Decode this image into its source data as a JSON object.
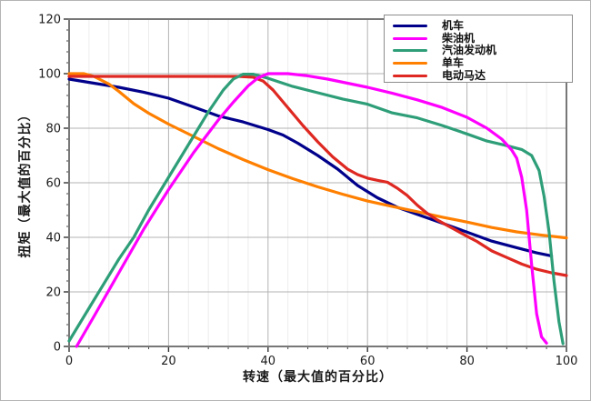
{
  "chart_data": {
    "type": "line",
    "title": "",
    "xlabel": "转速（最大值的百分比）",
    "ylabel": "扭矩（最大值的百分比）",
    "xlim": [
      0,
      100
    ],
    "ylim": [
      0,
      120
    ],
    "x_ticks": [
      0,
      20,
      40,
      60,
      80,
      100
    ],
    "y_ticks": [
      0,
      20,
      40,
      60,
      80,
      100,
      120
    ],
    "minor_step": 4,
    "grid": "major gray + minor light vertical",
    "legend_position": "top-right",
    "colors": {
      "major_grid": "#b3b3b3",
      "minor_grid": "#ececec",
      "plot_border": "#777777",
      "tick_text": "#1a1a1a"
    },
    "series": [
      {
        "name": "机车",
        "color": "#00008B",
        "points": [
          [
            0,
            98
          ],
          [
            5,
            96.5
          ],
          [
            10,
            95
          ],
          [
            15,
            93.2
          ],
          [
            20,
            91
          ],
          [
            25,
            87.8
          ],
          [
            30,
            84.5
          ],
          [
            35,
            82.3
          ],
          [
            40,
            79.5
          ],
          [
            43,
            77.5
          ],
          [
            46,
            74.5
          ],
          [
            50,
            70
          ],
          [
            54,
            65
          ],
          [
            58,
            59
          ],
          [
            62,
            54.5
          ],
          [
            66,
            51
          ],
          [
            70,
            48.4
          ],
          [
            75,
            45.2
          ],
          [
            80,
            41.9
          ],
          [
            85,
            38.6
          ],
          [
            90,
            36.2
          ],
          [
            94,
            34.3
          ],
          [
            97,
            33.2
          ]
        ]
      },
      {
        "name": "柴油机",
        "color": "#FF00FF",
        "points": [
          [
            1.5,
            0
          ],
          [
            5,
            11
          ],
          [
            10,
            27
          ],
          [
            15,
            43
          ],
          [
            20,
            57.5
          ],
          [
            25,
            71
          ],
          [
            30,
            83
          ],
          [
            33,
            89.5
          ],
          [
            36,
            95.5
          ],
          [
            38,
            98.5
          ],
          [
            40,
            100
          ],
          [
            44,
            100
          ],
          [
            48,
            99.2
          ],
          [
            52,
            98
          ],
          [
            56,
            96.5
          ],
          [
            60,
            95
          ],
          [
            65,
            92.8
          ],
          [
            70,
            90.4
          ],
          [
            75,
            87.6
          ],
          [
            80,
            84
          ],
          [
            84,
            80
          ],
          [
            87,
            76
          ],
          [
            89,
            72
          ],
          [
            90,
            69
          ],
          [
            91,
            62
          ],
          [
            92,
            50
          ],
          [
            93,
            30
          ],
          [
            94,
            12
          ],
          [
            95,
            3.5
          ],
          [
            96,
            1.2
          ]
        ]
      },
      {
        "name": "汽油发动机",
        "color": "#2E9E78",
        "points": [
          [
            0,
            2
          ],
          [
            5,
            17
          ],
          [
            10,
            32
          ],
          [
            13,
            40
          ],
          [
            16,
            50
          ],
          [
            20,
            62
          ],
          [
            24,
            74
          ],
          [
            28,
            86
          ],
          [
            31,
            94
          ],
          [
            33,
            98
          ],
          [
            35,
            99.8
          ],
          [
            37,
            99.8
          ],
          [
            40,
            98.3
          ],
          [
            45,
            95.3
          ],
          [
            50,
            93
          ],
          [
            55,
            90.7
          ],
          [
            60,
            88.8
          ],
          [
            65,
            85.6
          ],
          [
            70,
            83.8
          ],
          [
            75,
            81
          ],
          [
            80,
            77.9
          ],
          [
            84,
            75.3
          ],
          [
            88,
            73.6
          ],
          [
            91,
            72.2
          ],
          [
            93,
            70
          ],
          [
            94.5,
            64.5
          ],
          [
            95.5,
            55
          ],
          [
            96.5,
            42
          ],
          [
            97.5,
            24
          ],
          [
            98.5,
            9
          ],
          [
            99.3,
            1
          ]
        ]
      },
      {
        "name": "单车",
        "color": "#FF7F00",
        "points": [
          [
            0,
            100
          ],
          [
            3,
            100
          ],
          [
            5,
            99
          ],
          [
            8,
            96.2
          ],
          [
            10,
            93.5
          ],
          [
            13,
            89
          ],
          [
            16,
            85.5
          ],
          [
            20,
            81.5
          ],
          [
            25,
            77
          ],
          [
            30,
            72.5
          ],
          [
            35,
            68.5
          ],
          [
            40,
            64.8
          ],
          [
            45,
            61.5
          ],
          [
            50,
            58.5
          ],
          [
            55,
            55.8
          ],
          [
            60,
            53.3
          ],
          [
            65,
            51.3
          ],
          [
            70,
            49.4
          ],
          [
            75,
            47.4
          ],
          [
            80,
            45.6
          ],
          [
            85,
            43.6
          ],
          [
            90,
            42
          ],
          [
            95,
            40.8
          ],
          [
            100,
            39.8
          ]
        ]
      },
      {
        "name": "电动马达",
        "color": "#DE2821",
        "points": [
          [
            0,
            99
          ],
          [
            5,
            99
          ],
          [
            10,
            99
          ],
          [
            15,
            99
          ],
          [
            20,
            99
          ],
          [
            25,
            99
          ],
          [
            30,
            99
          ],
          [
            34,
            99
          ],
          [
            37,
            98.7
          ],
          [
            39,
            97.3
          ],
          [
            41,
            94
          ],
          [
            44,
            87.5
          ],
          [
            47,
            81
          ],
          [
            50,
            75
          ],
          [
            53,
            69.5
          ],
          [
            56,
            65
          ],
          [
            58,
            63
          ],
          [
            60,
            61.7
          ],
          [
            62,
            60.9
          ],
          [
            64,
            60.2
          ],
          [
            66,
            58
          ],
          [
            68,
            55.3
          ],
          [
            70,
            51.8
          ],
          [
            72,
            48.8
          ],
          [
            74,
            46.4
          ],
          [
            76,
            44.4
          ],
          [
            78,
            42.4
          ],
          [
            80,
            40.4
          ],
          [
            82,
            38.5
          ],
          [
            85,
            35
          ],
          [
            88,
            32.6
          ],
          [
            91,
            30.2
          ],
          [
            94,
            28.3
          ],
          [
            97,
            27
          ],
          [
            100,
            26
          ]
        ]
      }
    ]
  }
}
